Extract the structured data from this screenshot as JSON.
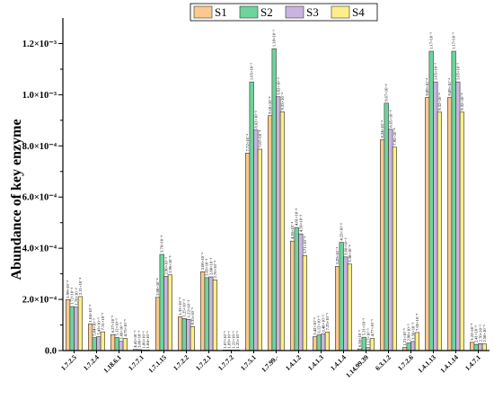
{
  "chart_data": {
    "type": "bar",
    "ylabel": "Abundance of key enzyme",
    "xlabel": "",
    "ylim": [
      0,
      0.0013
    ],
    "yticks": [
      {
        "value": 0,
        "label": "0.0"
      },
      {
        "value": 0.0002,
        "label": "2.0×10⁻⁴"
      },
      {
        "value": 0.0004,
        "label": "4.0×10⁻⁴"
      },
      {
        "value": 0.0006,
        "label": "6.0×10⁻⁴"
      },
      {
        "value": 0.0008,
        "label": "8.0×10⁻⁴"
      },
      {
        "value": 0.001,
        "label": "1.0×10⁻³"
      },
      {
        "value": 0.0012,
        "label": "1.2×10⁻³"
      }
    ],
    "legend_position": "top",
    "grid": false,
    "categories": [
      "1.7.2.5",
      "1.7.2.4",
      "1.18.6.1",
      "1.7.7.1",
      "1.7.1.15",
      "1.7.2.2",
      "1.7.2.1",
      "1.7.7.2",
      "1.7.5.1",
      "1.7.99.-",
      "1.4.1.2",
      "1.4.1.3",
      "1.4.1.4",
      "1.14.99.39",
      "6.3.1.2",
      "1.7.2.6",
      "1.4.1.13",
      "1.4.1.14",
      "1.4.7.1"
    ],
    "series": [
      {
        "name": "S1",
        "color": "#F9C98F",
        "values": [
          0.000199,
          0.000104,
          6.27e-05,
          4.41e-06,
          0.000208,
          0.000132,
          0.000308,
          1.07e-06,
          0.000772,
          0.000918,
          0.000428,
          5.42e-05,
          0.000329,
          6.5e-06,
          0.000824,
          1.21e-05,
          0.000989,
          0.000989,
          3.22e-05
        ]
      },
      {
        "name": "S2",
        "color": "#6DD49C",
        "values": [
          0.000172,
          5.04e-05,
          5.12e-05,
          3.86e-06,
          0.000376,
          0.000125,
          0.000285,
          1.09e-06,
          0.00105,
          0.00118,
          0.000481,
          6.12e-05,
          0.000423,
          5.21e-05,
          0.000967,
          2.98e-05,
          0.00117,
          0.00117,
          2.41e-05
        ]
      },
      {
        "name": "S3",
        "color": "#C9B4DF",
        "values": [
          0.00017,
          5.43e-05,
          3.6e-05,
          1.86e-06,
          0.00029,
          0.000122,
          0.000288,
          1.21e-06,
          0.000862,
          0.000992,
          0.000456,
          6.48e-05,
          0.000366,
          1.17e-05,
          0.000865,
          3.56e-05,
          0.00105,
          0.00105,
          2.7e-05
        ]
      },
      {
        "name": "S4",
        "color": "#FCEF8A",
        "values": [
          0.000211,
          7.31e-05,
          4.75e-05,
          1.84e-06,
          0.000296,
          9.35e-05,
          0.000276,
          1.25e-06,
          0.000787,
          0.000933,
          0.000371,
          7.25e-05,
          0.000338,
          4.77e-05,
          0.000795,
          7.05e-05,
          0.000932,
          0.000932,
          2.58e-05
        ]
      }
    ],
    "data_labels": [
      [
        "1.99×10⁻⁴",
        "1.72×10⁻⁴",
        "1.70×10⁻⁴",
        "2.11×10⁻⁴"
      ],
      [
        "1.04×10⁻⁴",
        "5.04×10⁻⁵",
        "5.43×10⁻⁵",
        "7.31×10⁻⁵"
      ],
      [
        "6.27×10⁻⁵",
        "5.12×10⁻⁵",
        "3.60×10⁻⁵",
        "4.75×10⁻⁵"
      ],
      [
        "4.41×10⁻⁶",
        "3.86×10⁻⁶",
        "1.86×10⁻⁶",
        "1.84×10⁻⁶"
      ],
      [
        "2.08×10⁻⁴",
        "3.76×10⁻⁴",
        "2.90×10⁻⁴",
        "2.96×10⁻⁴"
      ],
      [
        "1.32×10⁻⁴",
        "1.25×10⁻⁴",
        "1.22×10⁻⁴",
        "9.35×10⁻⁵"
      ],
      [
        "3.08×10⁻⁴",
        "2.85×10⁻⁴",
        "2.88×10⁻⁴",
        "2.76×10⁻⁴"
      ],
      [
        "1.07×10⁻⁶",
        "1.09×10⁻⁶",
        "1.21×10⁻⁶",
        "1.25×10⁻⁶"
      ],
      [
        "7.72×10⁻⁴",
        "1.05×10⁻³",
        "8.62×10⁻⁴",
        "7.87×10⁻⁴"
      ],
      [
        "9.18×10⁻⁴",
        "1.18×10⁻³",
        "9.92×10⁻⁴",
        "9.33×10⁻⁴"
      ],
      [
        "4.28×10⁻⁴",
        "4.81×10⁻⁴",
        "4.56×10⁻⁴",
        "3.71×10⁻⁴"
      ],
      [
        "5.42×10⁻⁵",
        "6.12×10⁻⁵",
        "6.48×10⁻⁵",
        "7.25×10⁻⁵"
      ],
      [
        "3.29×10⁻⁴",
        "4.23×10⁻⁴",
        "3.66×10⁻⁴",
        "3.38×10⁻⁴"
      ],
      [
        "6.50×10⁻⁶",
        "5.21×10⁻⁵",
        "1.17×10⁻⁵",
        "4.77×10⁻⁵"
      ],
      [
        "8.24×10⁻⁴",
        "9.67×10⁻⁴",
        "8.65×10⁻⁴",
        "7.95×10⁻⁴"
      ],
      [
        "1.21×10⁻⁵",
        "2.98×10⁻⁵",
        "3.56×10⁻⁵",
        "7.05×10⁻⁵"
      ],
      [
        "9.89×10⁻⁴",
        "1.17×10⁻³",
        "1.05×10⁻³",
        "9.32×10⁻⁴"
      ],
      [
        "9.89×10⁻⁴",
        "1.17×10⁻³",
        "1.05×10⁻³",
        "9.32×10⁻⁴"
      ],
      [
        "3.22×10⁻⁵",
        "2.41×10⁻⁵",
        "2.70×10⁻⁵",
        "2.58×10⁻⁵"
      ]
    ]
  }
}
